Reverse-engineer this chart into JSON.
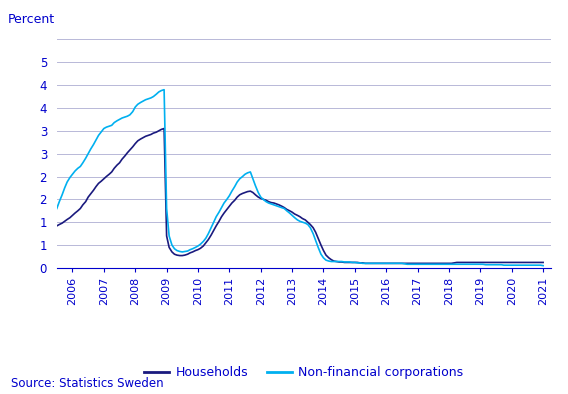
{
  "ylabel": "Percent",
  "source": "Source: Statistics Sweden",
  "ylim": [
    0,
    5.0
  ],
  "yticks": [
    0,
    0.5,
    1.0,
    1.5,
    2.0,
    2.5,
    3.0,
    3.5,
    4.0,
    4.5,
    5.0
  ],
  "ytick_labels": [
    "0",
    "1",
    "1",
    "2",
    "2",
    "3",
    "3",
    "4",
    "4",
    "5",
    ""
  ],
  "xlim_start": 2005.5,
  "xlim_end": 2021.25,
  "households_color": "#1a1a7e",
  "nfc_color": "#00b0f0",
  "background_color": "#ffffff",
  "grid_color": "#b8b8d8",
  "text_color": "#0000cc",
  "households_label": "Households",
  "nfc_label": "Non-financial corporations",
  "households_x": [
    2005.33,
    2005.42,
    2005.5,
    2005.58,
    2005.67,
    2005.75,
    2005.83,
    2005.92,
    2006.0,
    2006.08,
    2006.17,
    2006.25,
    2006.33,
    2006.42,
    2006.5,
    2006.58,
    2006.67,
    2006.75,
    2006.83,
    2006.92,
    2007.0,
    2007.08,
    2007.17,
    2007.25,
    2007.33,
    2007.42,
    2007.5,
    2007.58,
    2007.67,
    2007.75,
    2007.83,
    2007.92,
    2008.0,
    2008.08,
    2008.17,
    2008.25,
    2008.33,
    2008.42,
    2008.5,
    2008.58,
    2008.67,
    2008.75,
    2008.83,
    2008.92,
    2009.0,
    2009.08,
    2009.17,
    2009.25,
    2009.33,
    2009.42,
    2009.5,
    2009.58,
    2009.67,
    2009.75,
    2009.83,
    2009.92,
    2010.0,
    2010.08,
    2010.17,
    2010.25,
    2010.33,
    2010.42,
    2010.5,
    2010.58,
    2010.67,
    2010.75,
    2010.83,
    2010.92,
    2011.0,
    2011.08,
    2011.17,
    2011.25,
    2011.33,
    2011.42,
    2011.5,
    2011.58,
    2011.67,
    2011.75,
    2011.83,
    2011.92,
    2012.0,
    2012.08,
    2012.17,
    2012.25,
    2012.33,
    2012.42,
    2012.5,
    2012.58,
    2012.67,
    2012.75,
    2012.83,
    2012.92,
    2013.0,
    2013.08,
    2013.17,
    2013.25,
    2013.33,
    2013.42,
    2013.5,
    2013.58,
    2013.67,
    2013.75,
    2013.83,
    2013.92,
    2014.0,
    2014.08,
    2014.17,
    2014.25,
    2014.33,
    2014.42,
    2014.5,
    2014.58,
    2014.67,
    2014.75,
    2014.83,
    2014.92,
    2015.0,
    2015.08,
    2015.17,
    2015.25,
    2015.33,
    2015.42,
    2015.5,
    2015.58,
    2015.67,
    2015.75,
    2015.83,
    2015.92,
    2016.0,
    2016.08,
    2016.17,
    2016.25,
    2016.33,
    2016.42,
    2016.5,
    2016.58,
    2016.67,
    2016.75,
    2016.83,
    2016.92,
    2017.0,
    2017.08,
    2017.17,
    2017.25,
    2017.33,
    2017.42,
    2017.5,
    2017.58,
    2017.67,
    2017.75,
    2017.83,
    2017.92,
    2018.0,
    2018.08,
    2018.17,
    2018.25,
    2018.33,
    2018.42,
    2018.5,
    2018.58,
    2018.67,
    2018.75,
    2018.83,
    2018.92,
    2019.0,
    2019.08,
    2019.17,
    2019.25,
    2019.33,
    2019.42,
    2019.5,
    2019.58,
    2019.67,
    2019.75,
    2019.83,
    2019.92,
    2020.0,
    2020.08,
    2020.17,
    2020.25,
    2020.33,
    2020.42,
    2020.5,
    2020.58,
    2020.67,
    2020.75,
    2020.83,
    2020.92,
    2021.0
  ],
  "households_y": [
    0.85,
    0.88,
    0.92,
    0.95,
    0.98,
    1.02,
    1.06,
    1.1,
    1.15,
    1.2,
    1.25,
    1.3,
    1.38,
    1.45,
    1.55,
    1.62,
    1.7,
    1.78,
    1.85,
    1.9,
    1.95,
    2.0,
    2.05,
    2.1,
    2.18,
    2.25,
    2.3,
    2.38,
    2.45,
    2.52,
    2.58,
    2.65,
    2.72,
    2.78,
    2.82,
    2.85,
    2.88,
    2.9,
    2.92,
    2.95,
    2.97,
    3.0,
    3.03,
    3.05,
    0.7,
    0.45,
    0.35,
    0.3,
    0.28,
    0.27,
    0.27,
    0.28,
    0.3,
    0.33,
    0.35,
    0.38,
    0.4,
    0.43,
    0.48,
    0.55,
    0.62,
    0.72,
    0.82,
    0.92,
    1.02,
    1.12,
    1.2,
    1.28,
    1.35,
    1.42,
    1.48,
    1.55,
    1.6,
    1.63,
    1.65,
    1.67,
    1.68,
    1.65,
    1.6,
    1.55,
    1.52,
    1.5,
    1.48,
    1.45,
    1.43,
    1.42,
    1.4,
    1.38,
    1.35,
    1.32,
    1.28,
    1.25,
    1.22,
    1.18,
    1.15,
    1.12,
    1.08,
    1.05,
    1.0,
    0.95,
    0.88,
    0.78,
    0.65,
    0.5,
    0.38,
    0.28,
    0.22,
    0.18,
    0.15,
    0.14,
    0.13,
    0.13,
    0.12,
    0.12,
    0.12,
    0.12,
    0.12,
    0.12,
    0.11,
    0.11,
    0.1,
    0.1,
    0.1,
    0.1,
    0.1,
    0.1,
    0.1,
    0.1,
    0.1,
    0.1,
    0.1,
    0.1,
    0.1,
    0.1,
    0.1,
    0.1,
    0.1,
    0.1,
    0.1,
    0.1,
    0.1,
    0.1,
    0.1,
    0.1,
    0.1,
    0.1,
    0.1,
    0.1,
    0.1,
    0.1,
    0.1,
    0.1,
    0.1,
    0.1,
    0.11,
    0.12,
    0.12,
    0.12,
    0.12,
    0.12,
    0.12,
    0.12,
    0.12,
    0.12,
    0.12,
    0.12,
    0.12,
    0.12,
    0.12,
    0.12,
    0.12,
    0.12,
    0.12,
    0.12,
    0.12,
    0.12,
    0.12,
    0.12,
    0.12,
    0.12,
    0.12,
    0.12,
    0.12,
    0.12,
    0.12,
    0.12,
    0.12,
    0.12,
    0.12
  ],
  "nfc_x": [
    2005.33,
    2005.42,
    2005.5,
    2005.58,
    2005.67,
    2005.75,
    2005.83,
    2005.92,
    2006.0,
    2006.08,
    2006.17,
    2006.25,
    2006.33,
    2006.42,
    2006.5,
    2006.58,
    2006.67,
    2006.75,
    2006.83,
    2006.92,
    2007.0,
    2007.08,
    2007.17,
    2007.25,
    2007.33,
    2007.42,
    2007.5,
    2007.58,
    2007.67,
    2007.75,
    2007.83,
    2007.92,
    2008.0,
    2008.08,
    2008.17,
    2008.25,
    2008.33,
    2008.42,
    2008.5,
    2008.58,
    2008.67,
    2008.75,
    2008.83,
    2008.92,
    2009.0,
    2009.08,
    2009.17,
    2009.25,
    2009.33,
    2009.42,
    2009.5,
    2009.58,
    2009.67,
    2009.75,
    2009.83,
    2009.92,
    2010.0,
    2010.08,
    2010.17,
    2010.25,
    2010.33,
    2010.42,
    2010.5,
    2010.58,
    2010.67,
    2010.75,
    2010.83,
    2010.92,
    2011.0,
    2011.08,
    2011.17,
    2011.25,
    2011.33,
    2011.42,
    2011.5,
    2011.58,
    2011.67,
    2011.75,
    2011.83,
    2011.92,
    2012.0,
    2012.08,
    2012.17,
    2012.25,
    2012.33,
    2012.42,
    2012.5,
    2012.58,
    2012.67,
    2012.75,
    2012.83,
    2012.92,
    2013.0,
    2013.08,
    2013.17,
    2013.25,
    2013.33,
    2013.42,
    2013.5,
    2013.58,
    2013.67,
    2013.75,
    2013.83,
    2013.92,
    2014.0,
    2014.08,
    2014.17,
    2014.25,
    2014.33,
    2014.42,
    2014.5,
    2014.58,
    2014.67,
    2014.75,
    2014.83,
    2014.92,
    2015.0,
    2015.08,
    2015.17,
    2015.25,
    2015.33,
    2015.42,
    2015.5,
    2015.58,
    2015.67,
    2015.75,
    2015.83,
    2015.92,
    2016.0,
    2016.08,
    2016.17,
    2016.25,
    2016.33,
    2016.42,
    2016.5,
    2016.58,
    2016.67,
    2016.75,
    2016.83,
    2016.92,
    2017.0,
    2017.08,
    2017.17,
    2017.25,
    2017.33,
    2017.42,
    2017.5,
    2017.58,
    2017.67,
    2017.75,
    2017.83,
    2017.92,
    2018.0,
    2018.08,
    2018.17,
    2018.25,
    2018.33,
    2018.42,
    2018.5,
    2018.58,
    2018.67,
    2018.75,
    2018.83,
    2018.92,
    2019.0,
    2019.08,
    2019.17,
    2019.25,
    2019.33,
    2019.42,
    2019.5,
    2019.58,
    2019.67,
    2019.75,
    2019.83,
    2019.92,
    2020.0,
    2020.08,
    2020.17,
    2020.25,
    2020.33,
    2020.42,
    2020.5,
    2020.58,
    2020.67,
    2020.75,
    2020.83,
    2020.92,
    2021.0
  ],
  "nfc_y": [
    1.1,
    1.2,
    1.3,
    1.45,
    1.6,
    1.75,
    1.88,
    1.98,
    2.05,
    2.12,
    2.18,
    2.22,
    2.3,
    2.4,
    2.5,
    2.6,
    2.7,
    2.8,
    2.9,
    2.98,
    3.05,
    3.08,
    3.1,
    3.12,
    3.18,
    3.22,
    3.25,
    3.28,
    3.3,
    3.32,
    3.35,
    3.42,
    3.52,
    3.58,
    3.62,
    3.65,
    3.68,
    3.7,
    3.72,
    3.75,
    3.8,
    3.85,
    3.88,
    3.9,
    1.3,
    0.7,
    0.5,
    0.42,
    0.38,
    0.36,
    0.35,
    0.36,
    0.37,
    0.4,
    0.42,
    0.45,
    0.48,
    0.52,
    0.58,
    0.65,
    0.75,
    0.88,
    1.0,
    1.12,
    1.22,
    1.32,
    1.42,
    1.5,
    1.58,
    1.68,
    1.78,
    1.88,
    1.95,
    2.0,
    2.05,
    2.08,
    2.1,
    1.95,
    1.8,
    1.65,
    1.55,
    1.5,
    1.45,
    1.42,
    1.4,
    1.38,
    1.36,
    1.34,
    1.32,
    1.3,
    1.25,
    1.2,
    1.15,
    1.1,
    1.05,
    1.02,
    1.0,
    0.98,
    0.95,
    0.88,
    0.75,
    0.6,
    0.45,
    0.3,
    0.22,
    0.17,
    0.15,
    0.14,
    0.14,
    0.14,
    0.14,
    0.14,
    0.13,
    0.13,
    0.13,
    0.12,
    0.12,
    0.11,
    0.11,
    0.1,
    0.1,
    0.1,
    0.1,
    0.1,
    0.1,
    0.1,
    0.1,
    0.1,
    0.1,
    0.1,
    0.1,
    0.1,
    0.1,
    0.1,
    0.1,
    0.09,
    0.08,
    0.08,
    0.08,
    0.08,
    0.08,
    0.08,
    0.08,
    0.08,
    0.08,
    0.08,
    0.08,
    0.08,
    0.08,
    0.08,
    0.08,
    0.08,
    0.08,
    0.08,
    0.08,
    0.08,
    0.08,
    0.08,
    0.08,
    0.08,
    0.08,
    0.08,
    0.08,
    0.08,
    0.08,
    0.08,
    0.07,
    0.07,
    0.07,
    0.07,
    0.07,
    0.07,
    0.07,
    0.06,
    0.06,
    0.06,
    0.06,
    0.06,
    0.06,
    0.06,
    0.06,
    0.06,
    0.06,
    0.06,
    0.06,
    0.06,
    0.06,
    0.06,
    0.05
  ]
}
